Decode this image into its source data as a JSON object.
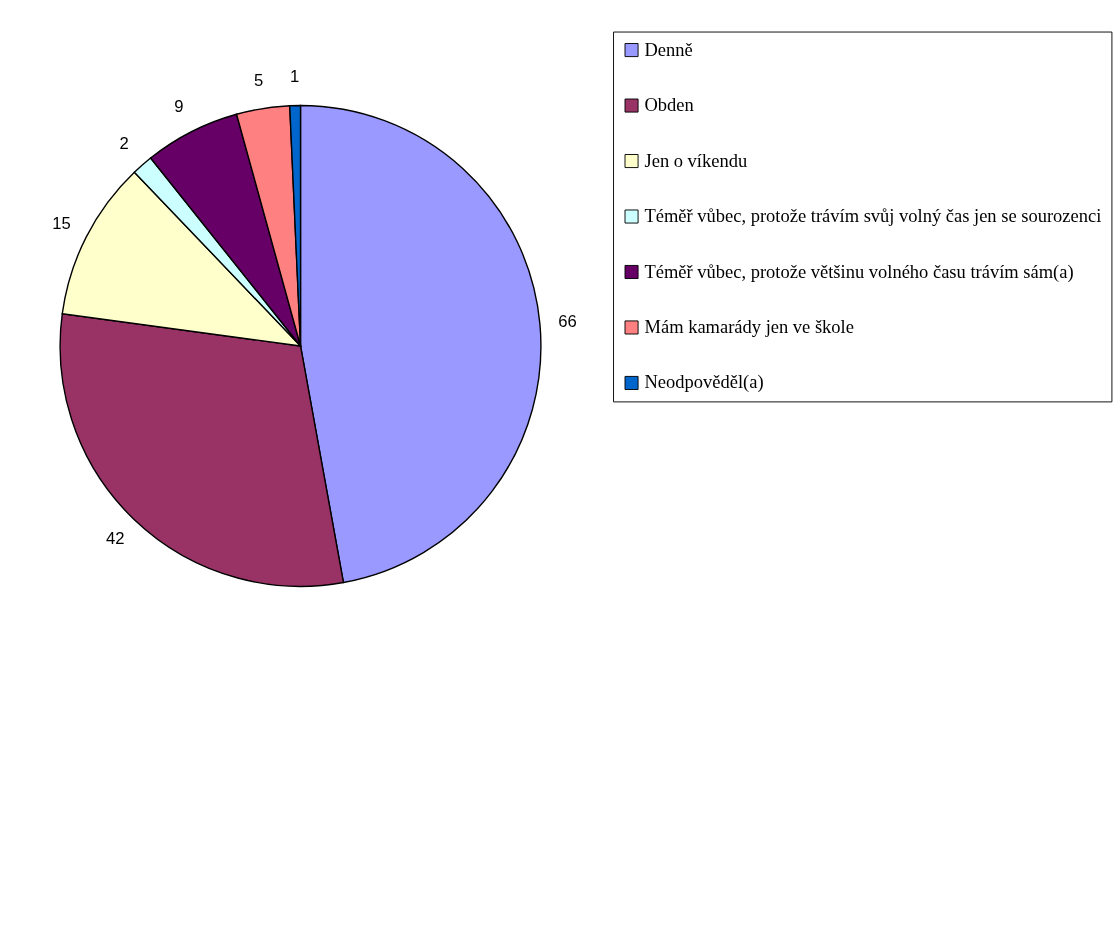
{
  "chart_data": {
    "type": "pie",
    "categories": [
      "Denně",
      "Obden",
      "Jen o víkendu",
      "Téměř vůbec, protože trávím svůj volný čas jen se sourozenci",
      "Téměř vůbec, protože většinu volného času trávím sám(a)",
      "Mám kamarády jen ve škole",
      "Neodpověděl(a)"
    ],
    "values": [
      66,
      42,
      15,
      2,
      9,
      5,
      1
    ],
    "colors": [
      "#9999ff",
      "#993366",
      "#ffffcc",
      "#ccffff",
      "#660066",
      "#ff8080",
      "#0066cc"
    ],
    "data_labels": true,
    "legend": "right"
  }
}
